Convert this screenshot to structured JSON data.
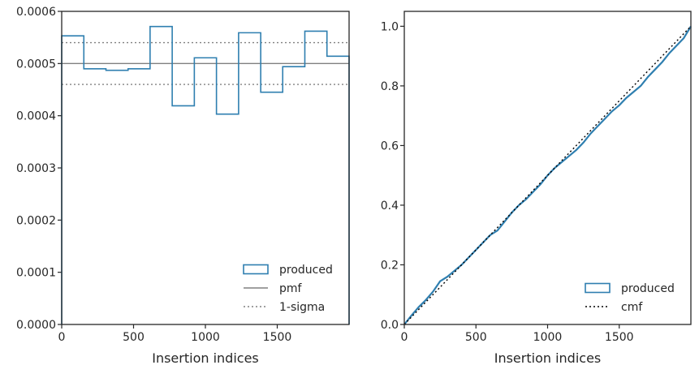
{
  "chart_data": [
    {
      "type": "histogram-step",
      "xlabel": "Insertion indices",
      "ylabel": "",
      "xlim": [
        0,
        2000
      ],
      "ylim": [
        0,
        0.0006
      ],
      "xticks": [
        {
          "value": 0,
          "label": "0"
        },
        {
          "value": 500,
          "label": "500"
        },
        {
          "value": 1000,
          "label": "1000"
        },
        {
          "value": 1500,
          "label": "1500"
        }
      ],
      "yticks": [
        {
          "value": 0,
          "label": "0.0000"
        },
        {
          "value": 0.0001,
          "label": "0.0001"
        },
        {
          "value": 0.0002,
          "label": "0.0002"
        },
        {
          "value": 0.0003,
          "label": "0.0003"
        },
        {
          "value": 0.0004,
          "label": "0.0004"
        },
        {
          "value": 0.0005,
          "label": "0.0005"
        },
        {
          "value": 0.0006,
          "label": "0.0006"
        }
      ],
      "bin_edges": [
        0,
        154,
        308,
        462,
        615,
        769,
        923,
        1077,
        1231,
        1385,
        1538,
        1692,
        1846,
        2000
      ],
      "series": [
        {
          "name": "produced",
          "color": "#2f7fb0",
          "values": [
            0.000553,
            0.00049,
            0.000487,
            0.00049,
            0.000571,
            0.000419,
            0.000511,
            0.000403,
            0.000559,
            0.000445,
            0.000494,
            0.000562,
            0.000514
          ]
        }
      ],
      "hlines": [
        {
          "name": "pmf",
          "y": 0.0005,
          "style": "solid",
          "color": "#808080"
        },
        {
          "name": "1-sigma",
          "y": 0.00054,
          "style": "dotted",
          "color": "#808080"
        },
        {
          "name": "",
          "y": 0.00046,
          "style": "dotted",
          "color": "#808080"
        }
      ],
      "legend": {
        "position": "lower-right",
        "entries": [
          {
            "label": "produced",
            "kind": "patch",
            "color": "#2f7fb0"
          },
          {
            "label": "pmf",
            "kind": "line",
            "style": "solid",
            "color": "#808080"
          },
          {
            "label": "1-sigma",
            "kind": "line",
            "style": "dotted",
            "color": "#808080"
          }
        ]
      }
    },
    {
      "type": "line",
      "xlabel": "Insertion indices",
      "ylabel": "",
      "xlim": [
        0,
        2000
      ],
      "ylim": [
        0,
        1.05
      ],
      "xticks": [
        {
          "value": 0,
          "label": "0"
        },
        {
          "value": 500,
          "label": "500"
        },
        {
          "value": 1000,
          "label": "1000"
        },
        {
          "value": 1500,
          "label": "1500"
        }
      ],
      "yticks": [
        {
          "value": 0,
          "label": "0.0"
        },
        {
          "value": 0.2,
          "label": "0.2"
        },
        {
          "value": 0.4,
          "label": "0.4"
        },
        {
          "value": 0.6,
          "label": "0.6"
        },
        {
          "value": 0.8,
          "label": "0.8"
        },
        {
          "value": 1.0,
          "label": "1.0"
        }
      ],
      "series": [
        {
          "name": "produced",
          "color": "#2f7fb0",
          "style": "solid",
          "x": [
            0,
            50,
            100,
            150,
            200,
            250,
            300,
            350,
            400,
            450,
            500,
            550,
            600,
            650,
            700,
            750,
            800,
            850,
            900,
            950,
            1000,
            1050,
            1100,
            1150,
            1200,
            1250,
            1300,
            1350,
            1400,
            1450,
            1500,
            1550,
            1600,
            1650,
            1700,
            1750,
            1800,
            1850,
            1900,
            1950,
            2000
          ],
          "y": [
            0,
            0.03,
            0.058,
            0.082,
            0.11,
            0.145,
            0.16,
            0.18,
            0.2,
            0.225,
            0.25,
            0.275,
            0.3,
            0.315,
            0.345,
            0.375,
            0.4,
            0.42,
            0.445,
            0.47,
            0.5,
            0.525,
            0.545,
            0.565,
            0.585,
            0.61,
            0.64,
            0.665,
            0.69,
            0.715,
            0.735,
            0.76,
            0.78,
            0.8,
            0.83,
            0.855,
            0.88,
            0.91,
            0.935,
            0.96,
            1.0
          ]
        },
        {
          "name": "cmf",
          "color": "#000000",
          "style": "dotted",
          "x": [
            0,
            2000
          ],
          "y": [
            0,
            1.0
          ]
        }
      ],
      "legend": {
        "position": "lower-right",
        "entries": [
          {
            "label": "produced",
            "kind": "patch",
            "color": "#2f7fb0"
          },
          {
            "label": "cmf",
            "kind": "line",
            "style": "dotted",
            "color": "#000000"
          }
        ]
      }
    }
  ]
}
